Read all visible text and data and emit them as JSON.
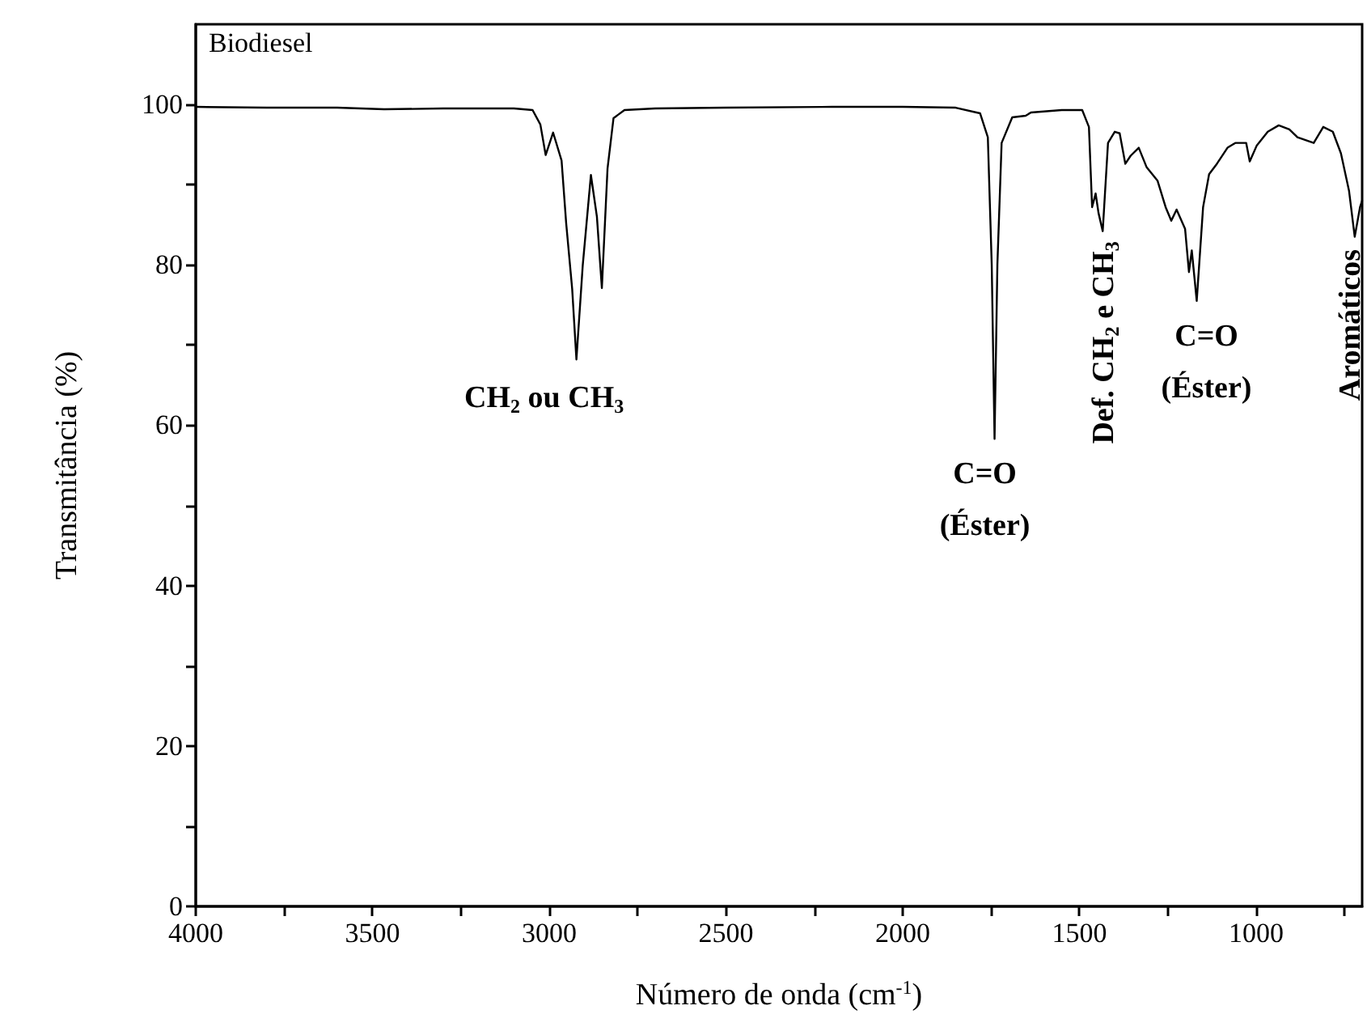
{
  "chart_data": {
    "type": "line",
    "xlabel": "Número de onda (cm$^{-1}$)",
    "ylabel": "Transmitância (%)",
    "xlim": [
      4000,
      700
    ],
    "ylim": [
      0,
      110
    ],
    "xticks": [
      4000,
      {
        "value": 3750,
        "label": null
      },
      3500,
      {
        "value": 3250,
        "label": null
      },
      3000,
      {
        "value": 2750,
        "label": null
      },
      2500,
      {
        "value": 2250,
        "label": null
      },
      2000,
      {
        "value": 1750,
        "label": null
      },
      1500,
      {
        "value": 1250,
        "label": null
      },
      1000,
      {
        "value": 750,
        "label": null
      }
    ],
    "yticks": [
      0,
      {
        "value": 10,
        "label": null
      },
      20,
      {
        "value": 30,
        "label": null
      },
      40,
      {
        "value": 50,
        "label": null
      },
      60,
      {
        "value": 70,
        "label": null
      },
      80,
      {
        "value": 90,
        "label": null
      },
      100
    ],
    "grid": false,
    "marker": "none",
    "line_style": "solid",
    "series": [
      {
        "color": "#000000",
        "x": [
          4000,
          3800,
          3600,
          3467,
          3300,
          3100,
          3047,
          3025,
          3010,
          2989,
          2965,
          2952,
          2935,
          2923,
          2905,
          2882,
          2865,
          2851,
          2835,
          2818,
          2787,
          2700,
          2500,
          2200,
          2000,
          1850,
          1781,
          1759,
          1748,
          1740,
          1732,
          1720,
          1690,
          1652,
          1637,
          1550,
          1492,
          1473,
          1464,
          1454,
          1446,
          1434,
          1419,
          1400,
          1386,
          1370,
          1355,
          1332,
          1310,
          1279,
          1256,
          1240,
          1225,
          1201,
          1190,
          1182,
          1168,
          1150,
          1133,
          1111,
          1081,
          1059,
          1028,
          1018,
          998,
          967,
          936,
          906,
          883,
          837,
          810,
          783,
          760,
          737,
          721,
          706,
          700
        ],
        "values": [
          99.7,
          99.6,
          99.6,
          99.4,
          99.5,
          99.5,
          99.3,
          97.5,
          93.7,
          96.5,
          93,
          85.2,
          77,
          68.2,
          80,
          91.2,
          86,
          77.1,
          92,
          98.3,
          99.3,
          99.5,
          99.6,
          99.7,
          99.7,
          99.6,
          98.9,
          95.9,
          80,
          58.3,
          80,
          95.2,
          98.4,
          98.6,
          99.0,
          99.3,
          99.3,
          97.2,
          87.2,
          88.9,
          86.5,
          84.2,
          95.2,
          96.6,
          96.4,
          92.6,
          93.6,
          94.6,
          92.2,
          90.5,
          87.2,
          85.5,
          86.9,
          84.5,
          79.1,
          81.8,
          75.5,
          87.2,
          91.3,
          92.6,
          94.6,
          95.2,
          95.2,
          92.9,
          94.9,
          96.6,
          97.4,
          96.9,
          95.9,
          95.2,
          97.2,
          96.6,
          93.9,
          89.2,
          83.5,
          87.2,
          88
        ]
      }
    ],
    "annotations": [
      "Biodiesel",
      {
        "text": "CH$_{2}$ ou CH$_{3}$",
        "x": 2923,
        "y": 68.2
      },
      {
        "text": "C=O\n(Éster)",
        "x": 1740,
        "y": 58.3
      },
      {
        "text": "Def. CH$_{2}$ e CH$_{3}$",
        "x": 1434,
        "y": 84.2
      },
      {
        "text": "C=O\n(Éster)",
        "x": 1168,
        "y": 75.5
      },
      {
        "text": "Aromáticos",
        "x": 721,
        "y": 83.5
      }
    ]
  }
}
